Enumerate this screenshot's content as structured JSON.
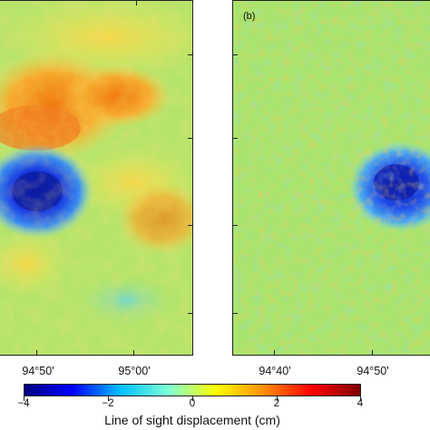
{
  "panels": [
    {
      "id": "a",
      "label": "",
      "lon_ticks": [
        "94°50'",
        "95°00'"
      ]
    },
    {
      "id": "b",
      "label": "(b)",
      "lon_ticks": [
        "94°40'",
        "94°50'"
      ]
    }
  ],
  "colorbar": {
    "title": "Line of sight displacement (cm)",
    "ticks": [
      "−4",
      "−2",
      "0",
      "2",
      "4"
    ],
    "range": [
      -4,
      4
    ],
    "colormap": [
      "#00007f",
      "#0000ff",
      "#00bfff",
      "#7fffd4",
      "#ffff00",
      "#ff8c00",
      "#ff0000",
      "#7f0000"
    ]
  },
  "colors": {
    "background_field": "#a8e86a",
    "uplift": "#f5a020",
    "subsidence": "#1a2fd0"
  }
}
